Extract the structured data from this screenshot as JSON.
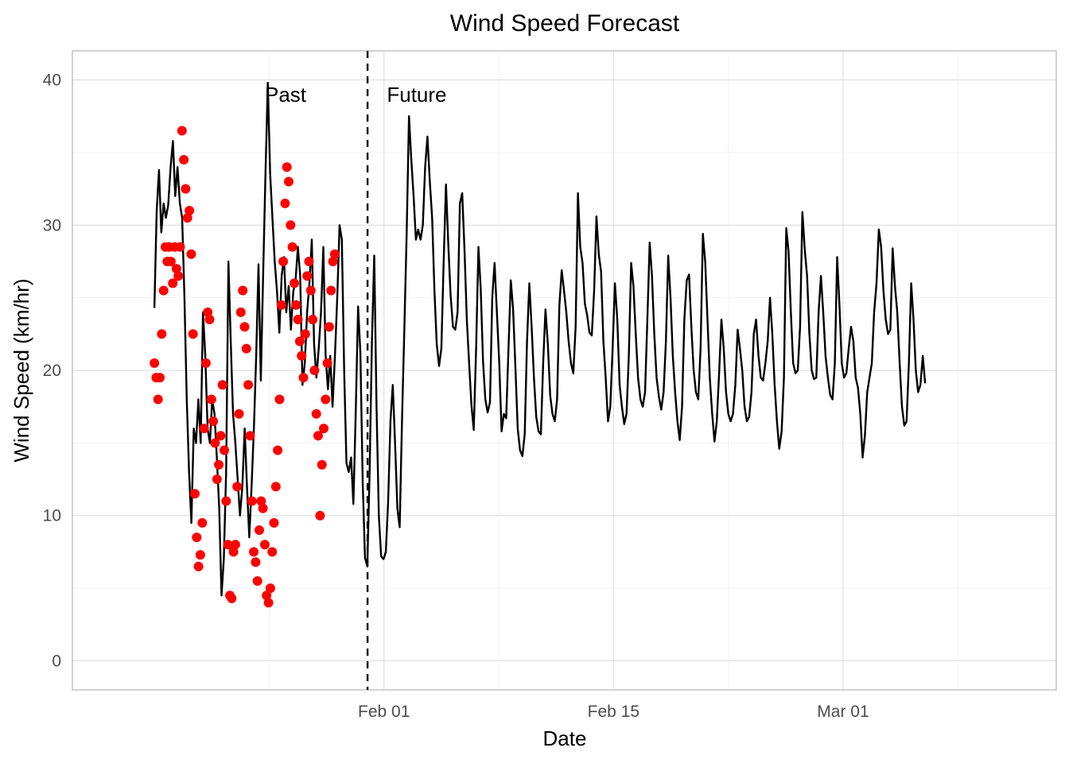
{
  "chart_data": {
    "type": "line",
    "title": "Wind Speed Forecast",
    "xlabel": "Date",
    "ylabel": "Wind Speed (km/hr)",
    "x_start": "2023-01-18",
    "x_end": "2023-03-06",
    "xlim": [
      "2023-01-13",
      "2023-03-14"
    ],
    "ylim": [
      -2,
      42
    ],
    "grid": true,
    "y_ticks": [
      0,
      10,
      20,
      30,
      40
    ],
    "x_ticks": [
      {
        "date": "2023-02-01",
        "label": "Feb 01"
      },
      {
        "date": "2023-02-15",
        "label": "Feb 15"
      },
      {
        "date": "2023-03-01",
        "label": "Mar 01"
      }
    ],
    "divider": {
      "date": "2023-01-31",
      "style": "dashed"
    },
    "annotations": [
      {
        "text": "Past",
        "date": "2023-01-26",
        "y": 39
      },
      {
        "text": "Future",
        "date": "2023-02-03",
        "y": 39
      }
    ],
    "series": [
      {
        "kind": "line",
        "color": "#000000",
        "values": [
          24.3,
          31,
          33.8,
          29.5,
          31.5,
          30.5,
          31.4,
          34,
          35.8,
          32,
          34,
          31.5,
          30.5,
          25,
          18,
          13,
          9.5,
          16,
          15,
          18,
          15,
          24,
          21,
          16,
          15,
          18,
          17,
          14,
          10.5,
          4.5,
          7,
          13,
          27.5,
          22,
          17,
          15,
          12.5,
          10,
          12,
          16,
          12,
          8.5,
          12,
          16,
          21,
          27.3,
          19.3,
          26.5,
          33.6,
          39.8,
          33.6,
          30.5,
          27.5,
          25.4,
          22.6,
          26.5,
          27.8,
          24,
          25.8,
          22.8,
          25.4,
          26.2,
          28.5,
          26.5,
          19,
          20.5,
          24,
          26,
          29,
          21.8,
          19.5,
          21.5,
          24,
          28.5,
          21,
          18.7,
          21,
          17.5,
          21,
          25,
          30,
          29,
          20,
          13.6,
          13,
          14,
          10.8,
          17,
          24.4,
          21.2,
          12.3,
          7.1,
          6.5,
          13,
          22,
          27.9,
          17.5,
          10,
          7.2,
          7,
          7.5,
          11,
          16.5,
          19,
          15,
          10.5,
          9.2,
          16.5,
          22.7,
          29.5,
          37.5,
          34.5,
          32,
          29,
          29.7,
          29,
          30,
          34,
          36.1,
          33,
          30.5,
          25.5,
          21.8,
          20.3,
          21.5,
          27.5,
          32.8,
          28.7,
          25.2,
          23,
          22.8,
          24,
          31.5,
          32.2,
          28.3,
          23.5,
          20.5,
          17.6,
          15.9,
          21.5,
          28.5,
          25.6,
          20.6,
          18,
          17.1,
          17.8,
          25,
          27.4,
          24,
          20.5,
          15.8,
          17,
          16.7,
          21.5,
          26.2,
          24.2,
          20.2,
          16,
          14.5,
          14.1,
          15.6,
          22,
          26,
          23,
          19.5,
          16.8,
          15.8,
          15.6,
          20.5,
          24.2,
          21.8,
          18.3,
          17,
          16.5,
          18,
          24.5,
          26.9,
          25.5,
          24,
          22,
          20.5,
          19.8,
          23,
          32.2,
          28.5,
          27.4,
          24.6,
          23.8,
          22.6,
          22.4,
          25.5,
          30.6,
          28,
          26.8,
          22,
          19.5,
          16.5,
          17.5,
          21.5,
          26,
          23.5,
          19,
          17.5,
          16.3,
          17,
          21,
          27.4,
          25.8,
          22.5,
          19.5,
          18,
          17.5,
          18.5,
          23.5,
          28.8,
          26.5,
          22.5,
          19.5,
          18.2,
          17.3,
          18.5,
          22,
          27.9,
          25,
          21,
          18.5,
          16.5,
          15.2,
          17.5,
          23.5,
          26.2,
          26.6,
          23,
          20,
          18.5,
          18,
          21.5,
          29.4,
          27.5,
          23.5,
          19.5,
          17,
          15.1,
          16.5,
          19.8,
          23.5,
          21.5,
          18.5,
          17,
          16.5,
          17,
          19,
          22.8,
          21.5,
          20,
          17.5,
          16.5,
          16.8,
          18.5,
          22.5,
          23.5,
          21,
          19.5,
          19.3,
          20.5,
          22,
          25,
          22.5,
          19,
          16.5,
          14.6,
          15.8,
          19.5,
          29.8,
          28.2,
          24,
          20.5,
          19.8,
          20,
          23,
          30.9,
          28.3,
          26.5,
          22.5,
          20,
          19.4,
          19.5,
          24,
          26.5,
          24,
          21,
          19.5,
          18.3,
          18,
          20.5,
          27.8,
          24.5,
          20.5,
          19.5,
          19.8,
          21.5,
          23,
          22,
          19.5,
          18.8,
          17,
          14,
          15.5,
          18.5,
          19.5,
          20.5,
          24,
          26,
          29.7,
          28.5,
          25.5,
          23.5,
          22.5,
          22.8,
          28.4,
          25.8,
          24,
          20.5,
          17.5,
          16.2,
          16.5,
          20.5,
          26,
          23.5,
          20,
          18.5,
          19,
          21,
          19.1
        ]
      },
      {
        "kind": "points",
        "color": "#ff0000",
        "values": [
          20.5,
          19.5,
          18,
          19.5,
          22.5,
          25.5,
          28.5,
          27.5,
          28.5,
          27.5,
          26,
          28.5,
          27,
          26.5,
          28.5,
          36.5,
          34.5,
          32.5,
          30.5,
          31,
          28,
          22.5,
          11.5,
          8.5,
          6.5,
          7.3,
          9.5,
          16,
          20.5,
          24,
          23.5,
          18,
          16.5,
          15,
          12.5,
          13.5,
          15.5,
          19,
          14.5,
          11,
          8,
          4.5,
          4.3,
          7.5,
          8,
          12,
          17,
          24,
          25.5,
          23,
          21.5,
          19,
          15.5,
          11,
          7.5,
          6.8,
          5.5,
          9,
          11,
          10.5,
          8,
          4.5,
          4,
          5,
          7.5,
          9.5,
          12,
          14.5,
          18,
          24.5,
          27.5,
          31.5,
          34,
          33,
          30,
          28.5,
          26,
          24.5,
          23.5,
          22,
          21,
          19.5,
          22.5,
          26.5,
          27.5,
          25.5,
          23.5,
          20,
          17,
          15.5,
          10,
          13.5,
          16,
          18,
          20.5,
          23,
          25.5,
          27.5,
          28
        ]
      }
    ]
  }
}
